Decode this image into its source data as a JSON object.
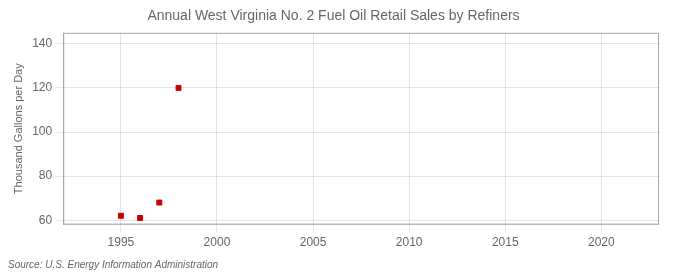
{
  "chart_data": {
    "type": "scatter",
    "title": "Annual West Virginia No. 2 Fuel Oil Retail Sales by Refiners",
    "ylabel": "Thousand Gallons per Day",
    "annotation": "Source: U.S. Energy Information Administration",
    "x": [
      1995,
      1996,
      1997,
      1998
    ],
    "values": [
      62,
      61,
      68,
      120
    ],
    "color": "#cc0000",
    "marker": "square",
    "xlim": [
      1992,
      2023
    ],
    "xticks": [
      1995,
      2000,
      2005,
      2010,
      2015,
      2020
    ],
    "ylim": [
      58,
      145
    ],
    "yticks": [
      60,
      80,
      100,
      120,
      140
    ],
    "grid": true
  }
}
